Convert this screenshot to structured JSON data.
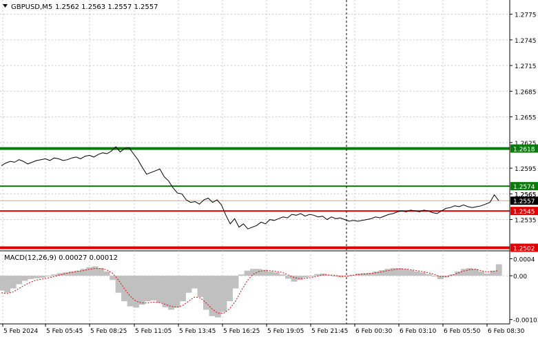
{
  "header": {
    "symbol_label": "GBPUSD,M5",
    "ohlc": "1.2562 1.2563 1.2557 1.2557",
    "menu_icon": "triangle-down-icon"
  },
  "colors": {
    "price_line": "#000000",
    "support_green": "#0a7a0a",
    "resistance_red": "#e00000",
    "current_price_line": "#e8a07a",
    "grid": "#c8c8c8",
    "macd_hist": "#c0c0c0",
    "macd_signal": "#e00000",
    "label_dark_bg": "#000000",
    "label_text": "#ffffff"
  },
  "chart_data": {
    "type": "line",
    "title": "GBPUSD,M5",
    "y_ticks": [
      "1.2775",
      "1.2745",
      "1.2715",
      "1.2685",
      "1.2655",
      "1.2625",
      "1.2595",
      "1.2565",
      "1.2535"
    ],
    "y_tick_values": [
      1.2775,
      1.2745,
      1.2715,
      1.2685,
      1.2655,
      1.2625,
      1.2595,
      1.2565,
      1.2535
    ],
    "ylim": [
      1.25,
      1.279
    ],
    "x_ticks": [
      "5 Feb 2024",
      "5 Feb 05:45",
      "5 Feb 08:25",
      "5 Feb 11:05",
      "5 Feb 13:45",
      "5 Feb 16:25",
      "5 Feb 19:05",
      "5 Feb 21:45",
      "6 Feb 00:30",
      "6 Feb 03:10",
      "6 Feb 05:50",
      "6 Feb 08:30"
    ],
    "price_series": [
      1.2598,
      1.2601,
      1.2603,
      1.2602,
      1.2605,
      1.2603,
      1.26,
      1.2602,
      1.2604,
      1.2605,
      1.2606,
      1.2604,
      1.2607,
      1.2606,
      1.2604,
      1.2605,
      1.2607,
      1.2608,
      1.2606,
      1.2609,
      1.261,
      1.2608,
      1.2611,
      1.2613,
      1.2612,
      1.2615,
      1.262,
      1.2614,
      1.2618,
      1.2619,
      1.2612,
      1.2605,
      1.2596,
      1.2588,
      1.259,
      1.2592,
      1.2594,
      1.2585,
      1.258,
      1.2572,
      1.2566,
      1.2565,
      1.2558,
      1.2555,
      1.2556,
      1.2553,
      1.2558,
      1.256,
      1.2555,
      1.2558,
      1.2552,
      1.254,
      1.253,
      1.2536,
      1.2526,
      1.253,
      1.2524,
      1.2526,
      1.2528,
      1.2532,
      1.253,
      1.2535,
      1.2534,
      1.2536,
      1.2538,
      1.2537,
      1.2541,
      1.254,
      1.2542,
      1.2539,
      1.2541,
      1.254,
      1.2538,
      1.2539,
      1.2535,
      1.2538,
      1.2536,
      1.2537,
      1.2535,
      1.2533,
      1.2534,
      1.2533,
      1.2534,
      1.2535,
      1.2536,
      1.2538,
      1.2537,
      1.2539,
      1.2541,
      1.2542,
      1.2544,
      1.2545,
      1.2544,
      1.2546,
      1.2545,
      1.2544,
      1.2546,
      1.2545,
      1.2543,
      1.2542,
      1.2545,
      1.2548,
      1.2549,
      1.2551,
      1.255,
      1.2552,
      1.255,
      1.2549,
      1.255,
      1.2551,
      1.2553,
      1.2555,
      1.2564,
      1.2557
    ],
    "levels": [
      {
        "price": 1.2618,
        "label": "1.2618",
        "style": "green-thick"
      },
      {
        "price": 1.2574,
        "label": "1.2574",
        "style": "green"
      },
      {
        "price": 1.2557,
        "label": "1.2557",
        "style": "current"
      },
      {
        "price": 1.2545,
        "label": "1.2545",
        "style": "red"
      },
      {
        "price": 1.2502,
        "label": "1.2502",
        "style": "red-thick"
      }
    ],
    "partial_tick_label": "1.2565",
    "indicator": {
      "name": "MACD(12,26,9) 0.00027 0.00012",
      "y_ticks": [
        "0.0004",
        "0.00",
        "-0.00103"
      ],
      "y_tick_values": [
        0.0004,
        0.0,
        -0.00103
      ],
      "ylim": [
        -0.0011,
        0.00052
      ],
      "histogram": [
        -0.00035,
        -0.0004,
        -0.0003,
        -0.0002,
        -0.00012,
        -8e-05,
        -6e-05,
        -5e-05,
        -2e-05,
        3e-05,
        6e-05,
        8e-05,
        0.0001,
        0.00012,
        0.00016,
        0.0002,
        0.00022,
        0.00018,
        0.0001,
        -0.0001,
        -0.0004,
        -0.0006,
        -0.00072,
        -0.00075,
        -0.00068,
        -0.0006,
        -0.00058,
        -0.00064,
        -0.00074,
        -0.0008,
        -0.00075,
        -0.0006,
        -0.0004,
        -0.0003,
        -0.0005,
        -0.0008,
        -0.00095,
        -0.00098,
        -0.00085,
        -0.0006,
        -0.0003,
        3e-05,
        0.00012,
        0.00016,
        0.00016,
        0.00014,
        0.0001,
        8e-05,
        3e-05,
        -7e-05,
        -0.00014,
        -0.0001,
        -4e-05,
        -2e-05,
        4e-05,
        5e-05,
        2e-05,
        -2e-05,
        -4e-05,
        -2e-05,
        2e-05,
        5e-05,
        6e-05,
        7e-05,
        0.0001,
        0.00013,
        0.00016,
        0.00018,
        0.00018,
        0.00016,
        0.00013,
        0.0001,
        8e-05,
        4e-05,
        -2e-05,
        -8e-05,
        -4e-05,
        3e-05,
        0.0001,
        0.00016,
        0.00018,
        0.00016,
        0.0001,
        5e-05,
        0.00012,
        0.00027
      ],
      "signal": [
        -0.0004,
        -0.00042,
        -0.00038,
        -0.0003,
        -0.00022,
        -0.00015,
        -0.0001,
        -8e-05,
        -5e-05,
        -2e-05,
        2e-05,
        5e-05,
        8e-05,
        0.0001,
        0.00012,
        0.00015,
        0.00017,
        0.00017,
        0.00014,
        6e-05,
        -0.0001,
        -0.0003,
        -0.00048,
        -0.0006,
        -0.00064,
        -0.00064,
        -0.00062,
        -0.00063,
        -0.00067,
        -0.00072,
        -0.00074,
        -0.0007,
        -0.0006,
        -0.0005,
        -0.00052,
        -0.00064,
        -0.00078,
        -0.00088,
        -0.00088,
        -0.00078,
        -0.0006,
        -0.00035,
        -0.00012,
        3e-05,
        0.0001,
        0.00012,
        0.00012,
        0.0001,
        8e-05,
        2e-05,
        -4e-05,
        -7e-05,
        -6e-05,
        -4e-05,
        -1e-05,
        2e-05,
        2e-05,
        1e-05,
        -1e-05,
        -1e-05,
        1e-05,
        3e-05,
        4e-05,
        5e-05,
        7e-05,
        9e-05,
        0.00012,
        0.00014,
        0.00016,
        0.00016,
        0.00014,
        0.00012,
        0.0001,
        7e-05,
        3e-05,
        -2e-05,
        -2e-05,
        1e-05,
        6e-05,
        0.00011,
        0.00014,
        0.00015,
        0.00012,
        9e-05,
        0.0001,
        0.00012
      ]
    }
  }
}
